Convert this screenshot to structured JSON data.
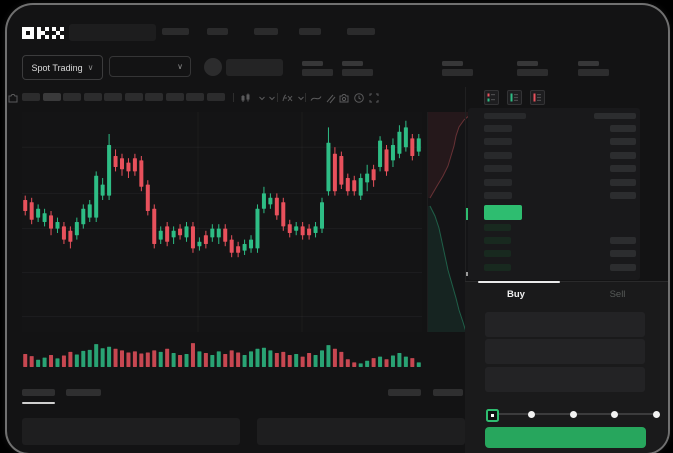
{
  "brand": {
    "name": "OKX"
  },
  "header": {
    "market_selector": "Spot Trading",
    "nav_placeholder_items": 5,
    "ticker_stat_groups": 5
  },
  "toolbar": {
    "timeframe_placeholders": 10,
    "icons": [
      "candle-style",
      "interval-dropdown",
      "indicator-fx",
      "trendline",
      "compare",
      "camera",
      "clock",
      "fullscreen"
    ]
  },
  "orderbook": {
    "view_icons": [
      "book-combined",
      "book-bids",
      "book-asks"
    ],
    "ask_rows": 6,
    "bid_rows": 4,
    "bid_rows_with_amount": 3,
    "price_highlight_color": "#2EBD70"
  },
  "trade_panel": {
    "tabs": [
      {
        "label": "Buy",
        "active": true
      },
      {
        "label": "Sell",
        "active": false
      }
    ],
    "input_fields": 3,
    "slider_stops": 5
  },
  "colors": {
    "background": "#000000",
    "app_background": "#131314",
    "candle_green": "#2EBD85",
    "candle_red": "#E8515C",
    "accent_green": "#27A65D",
    "price_green": "#2EBD70",
    "text_primary": "#E9E9E9",
    "text_muted": "#5C5F5E"
  },
  "chart_data": {
    "type": "candlestick",
    "title": "",
    "xlabel": "",
    "ylabel": "",
    "note": "Skeleton trading UI - no numeric axis labels visible; candle values are normalized percent of pane height measured from top: [bodyTop, bodyBottom, wickTop, wickBottom, color]",
    "grid_h_pct": [
      16,
      37,
      53,
      73,
      93
    ],
    "grid_v_pct": [
      44,
      70
    ],
    "candles": [
      [
        40,
        45,
        38,
        47,
        "r"
      ],
      [
        41,
        49,
        39,
        51,
        "r"
      ],
      [
        44,
        48,
        42,
        50,
        "g"
      ],
      [
        46,
        50,
        44,
        52,
        "g"
      ],
      [
        47,
        53,
        45,
        56,
        "r"
      ],
      [
        50,
        53,
        48,
        55,
        "g"
      ],
      [
        52,
        58,
        50,
        60,
        "r"
      ],
      [
        54,
        59,
        52,
        62,
        "r"
      ],
      [
        50,
        56,
        48,
        58,
        "g"
      ],
      [
        44,
        51,
        42,
        53,
        "g"
      ],
      [
        42,
        48,
        40,
        50,
        "g"
      ],
      [
        29,
        48,
        27,
        50,
        "g"
      ],
      [
        33,
        38,
        30,
        40,
        "g"
      ],
      [
        15,
        38,
        10,
        40,
        "g"
      ],
      [
        20,
        25,
        17,
        27,
        "r"
      ],
      [
        21,
        26,
        19,
        29,
        "r"
      ],
      [
        23,
        27,
        21,
        30,
        "r"
      ],
      [
        21,
        27,
        19,
        29,
        "r"
      ],
      [
        22,
        34,
        20,
        36,
        "r"
      ],
      [
        33,
        45,
        31,
        47,
        "r"
      ],
      [
        44,
        60,
        42,
        62,
        "r"
      ],
      [
        54,
        58,
        52,
        60,
        "g"
      ],
      [
        52,
        59,
        50,
        61,
        "r"
      ],
      [
        54,
        57,
        52,
        60,
        "g"
      ],
      [
        53,
        56,
        51,
        58,
        "r"
      ],
      [
        52,
        57,
        50,
        59,
        "g"
      ],
      [
        52,
        62,
        50,
        64,
        "r"
      ],
      [
        59,
        61,
        57,
        63,
        "g"
      ],
      [
        56,
        60,
        54,
        62,
        "r"
      ],
      [
        53,
        57,
        51,
        59,
        "g"
      ],
      [
        53,
        57,
        51,
        60,
        "g"
      ],
      [
        53,
        59,
        51,
        61,
        "r"
      ],
      [
        58,
        64,
        56,
        66,
        "r"
      ],
      [
        61,
        64,
        59,
        66,
        "r"
      ],
      [
        60,
        63,
        58,
        65,
        "g"
      ],
      [
        58,
        62,
        56,
        64,
        "g"
      ],
      [
        44,
        62,
        42,
        64,
        "g"
      ],
      [
        37,
        44,
        34,
        46,
        "g"
      ],
      [
        39,
        42,
        37,
        44,
        "g"
      ],
      [
        39,
        47,
        37,
        49,
        "r"
      ],
      [
        41,
        52,
        39,
        54,
        "r"
      ],
      [
        51,
        55,
        49,
        57,
        "r"
      ],
      [
        52,
        54,
        50,
        56,
        "g"
      ],
      [
        52,
        56,
        50,
        58,
        "r"
      ],
      [
        53,
        56,
        51,
        58,
        "r"
      ],
      [
        52,
        55,
        50,
        57,
        "g"
      ],
      [
        41,
        53,
        39,
        55,
        "g"
      ],
      [
        14,
        36,
        7,
        38,
        "g"
      ],
      [
        19,
        36,
        16,
        38,
        "r"
      ],
      [
        20,
        33,
        18,
        35,
        "r"
      ],
      [
        30,
        36,
        28,
        38,
        "r"
      ],
      [
        31,
        36,
        29,
        38,
        "r"
      ],
      [
        30,
        38,
        28,
        40,
        "g"
      ],
      [
        28,
        32,
        24,
        36,
        "g"
      ],
      [
        26,
        31,
        24,
        34,
        "r"
      ],
      [
        13,
        25,
        11,
        27,
        "g"
      ],
      [
        17,
        27,
        15,
        29,
        "r"
      ],
      [
        15,
        22,
        12,
        25,
        "g"
      ],
      [
        9,
        19,
        6,
        21,
        "g"
      ],
      [
        7,
        16,
        4,
        18,
        "g"
      ],
      [
        12,
        20,
        10,
        22,
        "r"
      ],
      [
        12,
        18,
        10,
        20,
        "g"
      ]
    ],
    "volume_pct": [
      50,
      42,
      28,
      36,
      46,
      33,
      44,
      58,
      48,
      62,
      66,
      88,
      72,
      78,
      70,
      64,
      56,
      60,
      52,
      56,
      64,
      58,
      70,
      54,
      46,
      50,
      92,
      60,
      54,
      46,
      60,
      50,
      64,
      56,
      46,
      60,
      70,
      74,
      64,
      54,
      58,
      46,
      50,
      40,
      54,
      46,
      64,
      84,
      70,
      58,
      30,
      18,
      14,
      24,
      34,
      40,
      30,
      44,
      54,
      40,
      34,
      18
    ],
    "depth": {
      "ask_line": [
        [
          42,
          3
        ],
        [
          36,
          8
        ],
        [
          31,
          15
        ],
        [
          28,
          24
        ],
        [
          26,
          34
        ],
        [
          23,
          44
        ],
        [
          20,
          54
        ],
        [
          15,
          64
        ],
        [
          9,
          74
        ],
        [
          2,
          86
        ]
      ],
      "bid_line": [
        [
          2,
          94
        ],
        [
          7,
          104
        ],
        [
          11,
          116
        ],
        [
          14,
          130
        ],
        [
          17,
          144
        ],
        [
          20,
          158
        ],
        [
          24,
          172
        ],
        [
          28,
          186
        ],
        [
          31,
          198
        ],
        [
          35,
          210
        ],
        [
          38,
          220
        ]
      ]
    }
  }
}
